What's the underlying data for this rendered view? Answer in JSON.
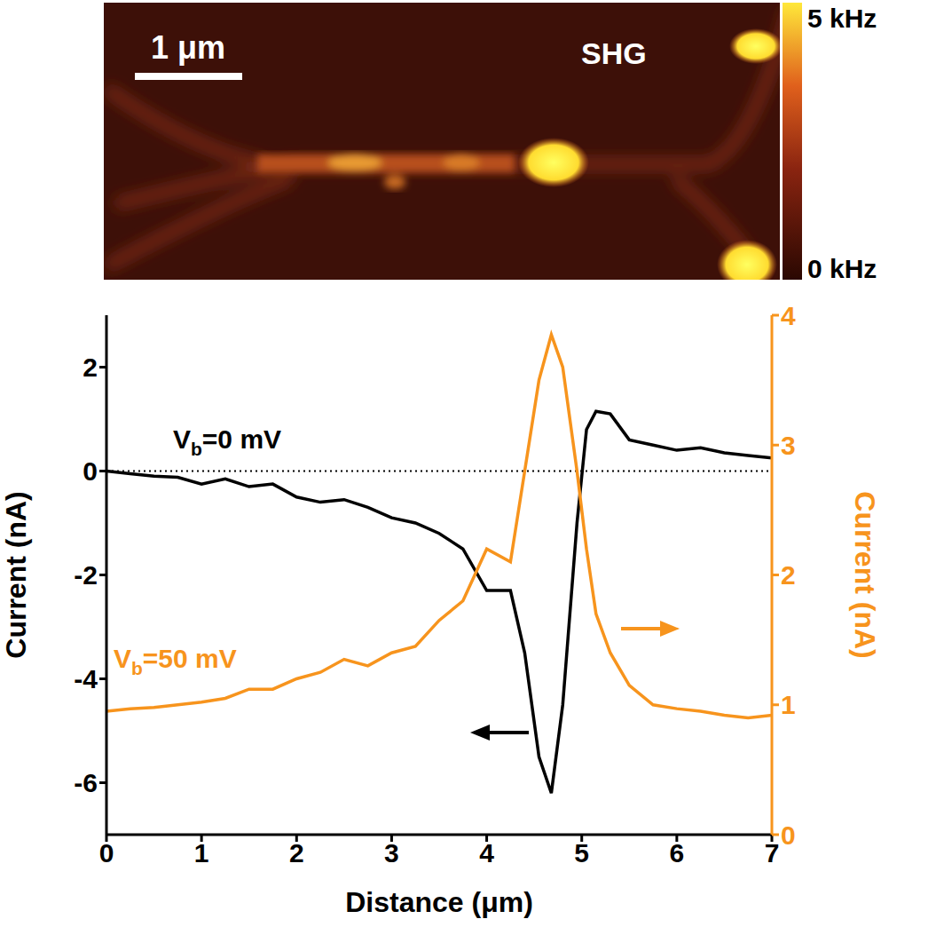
{
  "image": {
    "label": "SHG",
    "scale_bar": "1 μm",
    "colorbar": {
      "range": [
        0,
        5
      ],
      "ticks": [
        {
          "value": 5,
          "label": "5 kHz"
        },
        {
          "value": 0,
          "label": "0 kHz"
        }
      ]
    }
  },
  "chart_data": {
    "type": "line",
    "x_label": "Distance (μm)",
    "y_label": "Current (nA)",
    "y2_label": "Current (nA)",
    "x": [
      0,
      0.25,
      0.5,
      0.75,
      1,
      1.25,
      1.5,
      1.75,
      2,
      2.25,
      2.5,
      2.75,
      3,
      3.25,
      3.5,
      3.75,
      4,
      4.25,
      4.4,
      4.55,
      4.68,
      4.8,
      4.95,
      5.05,
      5.15,
      5.3,
      5.5,
      5.75,
      6,
      6.25,
      6.5,
      6.75,
      7
    ],
    "series": [
      {
        "name": "Vb=0 mV",
        "color": "#000000",
        "values": [
          0,
          -0.05,
          -0.1,
          -0.12,
          -0.25,
          -0.15,
          -0.3,
          -0.25,
          -0.5,
          -0.6,
          -0.55,
          -0.7,
          -0.9,
          -1.0,
          -1.2,
          -1.5,
          -2.3,
          -2.3,
          -3.5,
          -5.5,
          -6.2,
          -4.5,
          -1.0,
          0.8,
          1.15,
          1.1,
          0.6,
          0.5,
          0.4,
          0.45,
          0.35,
          0.3,
          0.25
        ]
      },
      {
        "name": "Vb=50 mV",
        "color": "#f7941d",
        "axis": "y2",
        "values": [
          0.95,
          0.97,
          0.98,
          1.0,
          1.02,
          1.05,
          1.12,
          1.12,
          1.2,
          1.25,
          1.35,
          1.3,
          1.4,
          1.45,
          1.65,
          1.8,
          2.2,
          2.1,
          2.8,
          3.5,
          3.85,
          3.6,
          2.8,
          2.2,
          1.7,
          1.4,
          1.15,
          1.0,
          0.97,
          0.95,
          0.92,
          0.9,
          0.92
        ]
      }
    ],
    "xlim": [
      0,
      7
    ],
    "xticks": [
      0,
      1,
      2,
      3,
      4,
      5,
      6,
      7
    ],
    "ylim": [
      -7,
      3
    ],
    "yticks": [
      -6,
      -4,
      -2,
      0,
      2
    ],
    "y2lim": [
      0,
      4
    ],
    "y2ticks": [
      0,
      1,
      2,
      3,
      4
    ],
    "reference_lines": [
      {
        "axis": "y",
        "value": 0,
        "line_style": "dotted"
      }
    ],
    "grid": false
  }
}
